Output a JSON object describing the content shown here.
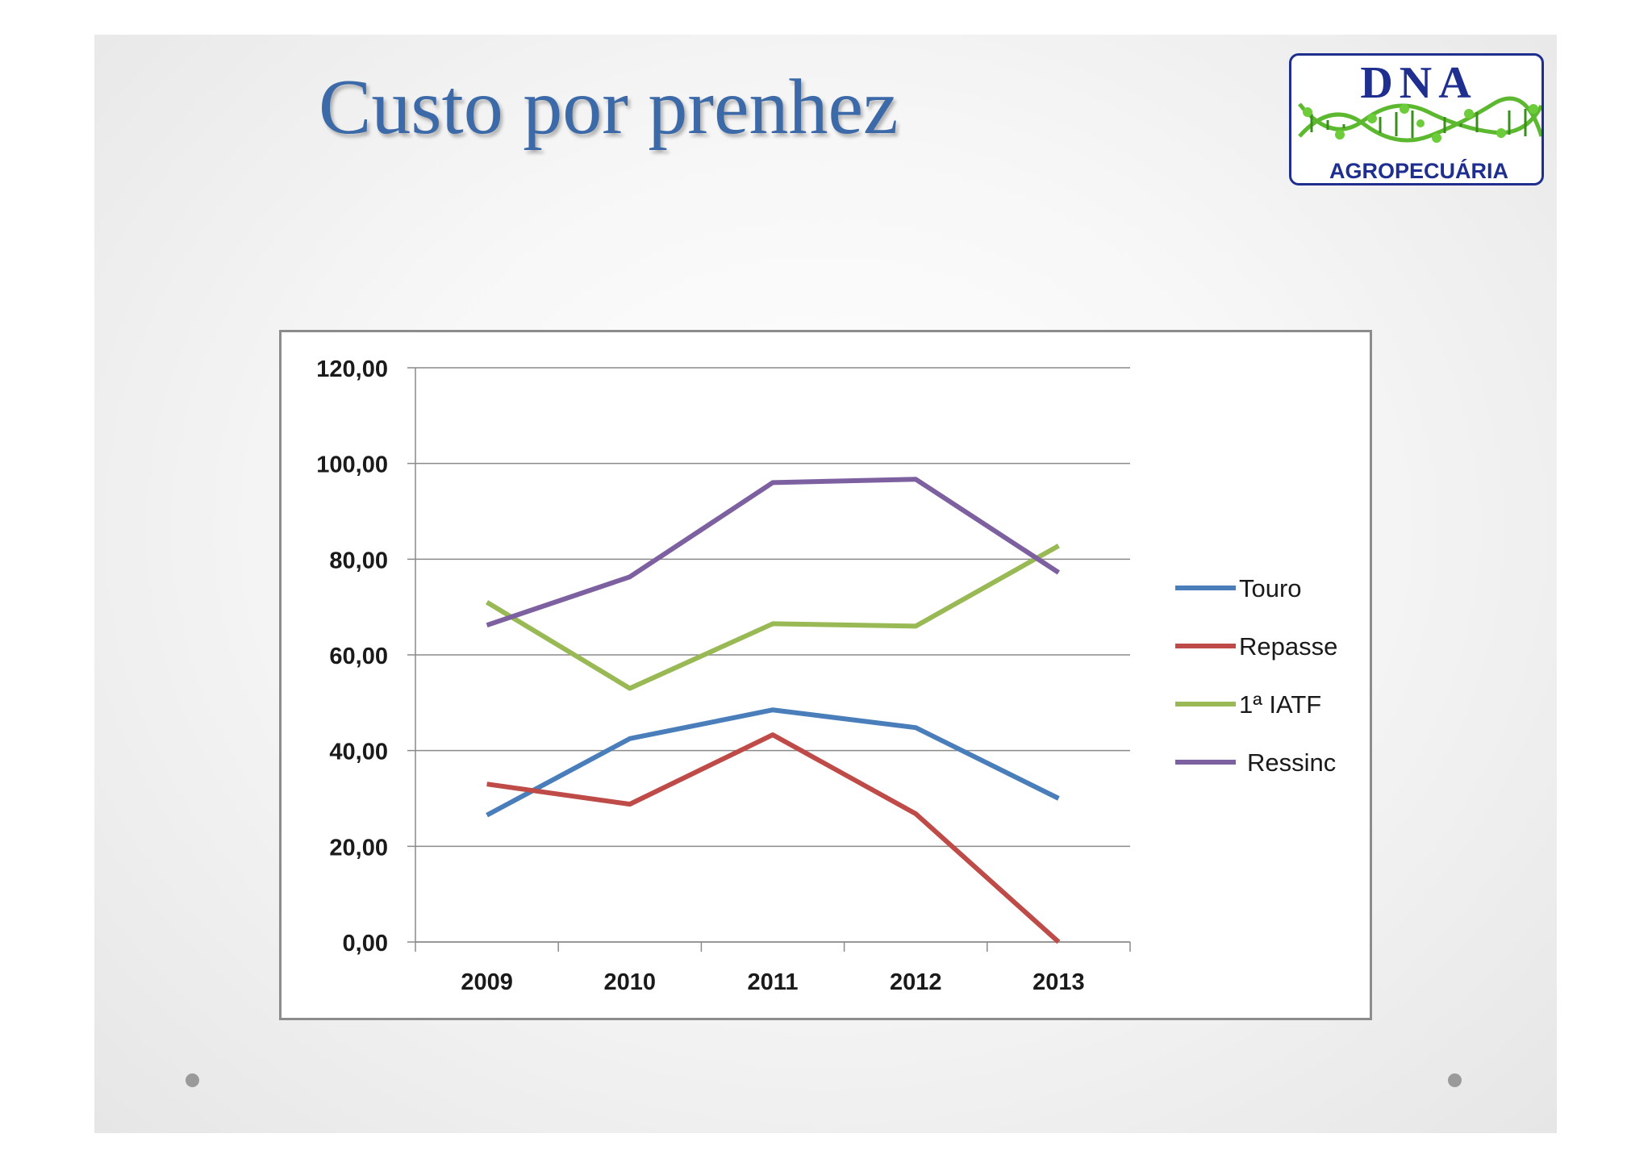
{
  "slide": {
    "title": "Custo por prenhez",
    "logo": {
      "top_text": "DNA",
      "bottom_text": "AGROPECUÁRIA",
      "icon": "dna-helix-icon"
    },
    "colors": {
      "title": "#3c6aa8",
      "background": "#f2f2f2",
      "logo_blue": "#1f2f8f",
      "logo_green": "#5cb82e"
    }
  },
  "chart_data": {
    "type": "line",
    "title": "",
    "xlabel": "",
    "ylabel": "",
    "categories": [
      "2009",
      "2010",
      "2011",
      "2012",
      "2013"
    ],
    "ylim": [
      0,
      120
    ],
    "yticks": [
      0,
      20,
      40,
      60,
      80,
      100,
      120
    ],
    "ytick_labels": [
      "0,00",
      "20,00",
      "40,00",
      "60,00",
      "80,00",
      "100,00",
      "120,00"
    ],
    "grid": true,
    "legend_position": "right",
    "series": [
      {
        "name": "Touro",
        "color": "#4a7ebb",
        "values": [
          26.5,
          42.5,
          48.5,
          44.8,
          30.0
        ]
      },
      {
        "name": "Repasse",
        "color": "#be4b48",
        "values": [
          33.0,
          28.8,
          43.3,
          26.8,
          0.0
        ]
      },
      {
        "name": "1ª IATF",
        "color": "#98b954",
        "values": [
          71.0,
          53.0,
          66.5,
          66.0,
          82.8
        ]
      },
      {
        "name": "Ressinc",
        "color": "#7d60a0",
        "values": [
          66.2,
          76.3,
          96.0,
          96.7,
          77.2
        ]
      }
    ]
  }
}
